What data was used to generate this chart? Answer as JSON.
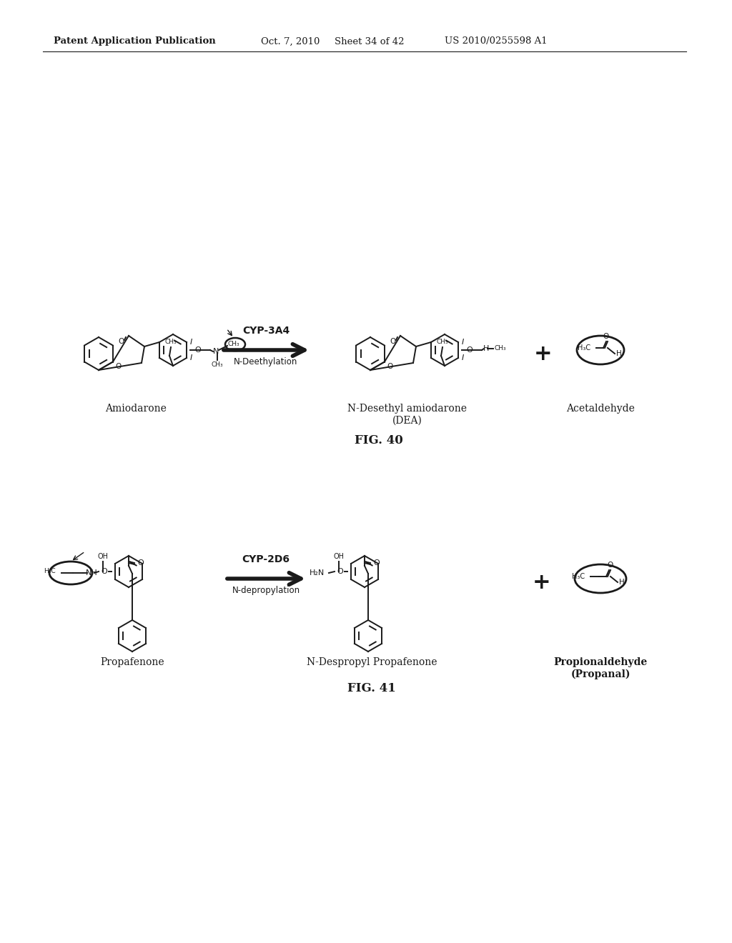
{
  "background_color": "#ffffff",
  "header_line1": "Patent Application Publication",
  "header_line2": "Oct. 7, 2010",
  "header_line3": "Sheet 34 of 42",
  "header_line4": "US 2010/0255598 A1",
  "fig40_label": "FIG. 40",
  "fig41_label": "FIG. 41",
  "fig40_enzyme": "CYP-3A4",
  "fig40_reaction": "N-Deethylation",
  "fig41_enzyme": "CYP-2D6",
  "fig41_reaction": "N-depropylation",
  "label_amiodarone": "Amiodarone",
  "label_dea": "N-Desethyl amiodarone\n(DEA)",
  "label_acetaldehyde": "Acetaldehyde",
  "label_propafenone": "Propafenone",
  "label_ndespropyl": "N-Despropyl Propafenone",
  "label_propionaldehyde": "Propionaldehyde\n(Propanal)",
  "text_color": "#1a1a1a",
  "line_color": "#1a1a1a"
}
